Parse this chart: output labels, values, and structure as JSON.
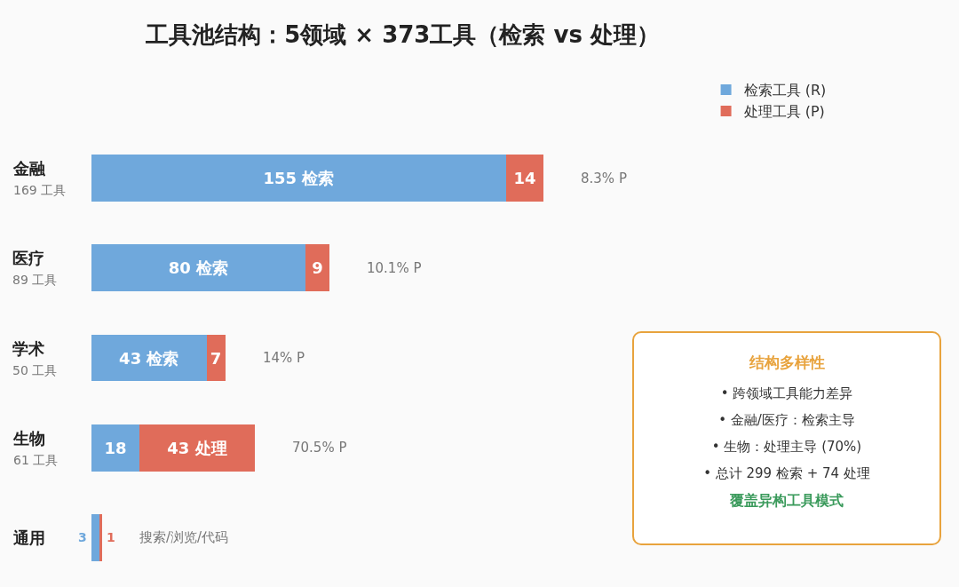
{
  "chart_data": {
    "type": "bar",
    "orientation": "horizontal",
    "stacked": true,
    "title": "工具池结构：5领域 × 373工具（检索 vs 处理）",
    "categories": [
      "金融\n169 工具",
      "医疗\n89 工具",
      "学术\n50 工具",
      "生物\n61 工具",
      "通用"
    ],
    "series": [
      {
        "name": "检索工具 (R)",
        "color": "#6fa8dc",
        "values": [
          155,
          80,
          43,
          18,
          3
        ],
        "value_labels": [
          "155 检索",
          "80 检索",
          "43 检索",
          "18",
          "3"
        ]
      },
      {
        "name": "处理工具 (P)",
        "color": "#e06c5a",
        "values": [
          14,
          9,
          7,
          43,
          1
        ],
        "value_labels": [
          "14",
          "9",
          "7",
          "43 处理",
          "1"
        ]
      }
    ],
    "legend": "top right",
    "grid": false,
    "annotations": [
      {
        "text": "8.3% P",
        "x": 169,
        "y": "金融\n169 工具"
      },
      {
        "text": "10.1% P",
        "x": 89,
        "y": "医疗\n89 工具"
      },
      {
        "text": "14% P",
        "x": 50,
        "y": "学术\n50 工具"
      },
      {
        "text": "70.5% P",
        "x": 61,
        "y": "生物\n61 工具"
      },
      {
        "text": "搜索/浏览/代码",
        "x": 4,
        "y": "通用"
      },
      "结构多样性",
      "• 跨领域工具能力差异",
      "• 金融/医疗：检索主导",
      "• 生物：处理主导 (70%)",
      "• 总计 299 检索 + 74 处理",
      "覆盖异构工具模式"
    ]
  }
}
